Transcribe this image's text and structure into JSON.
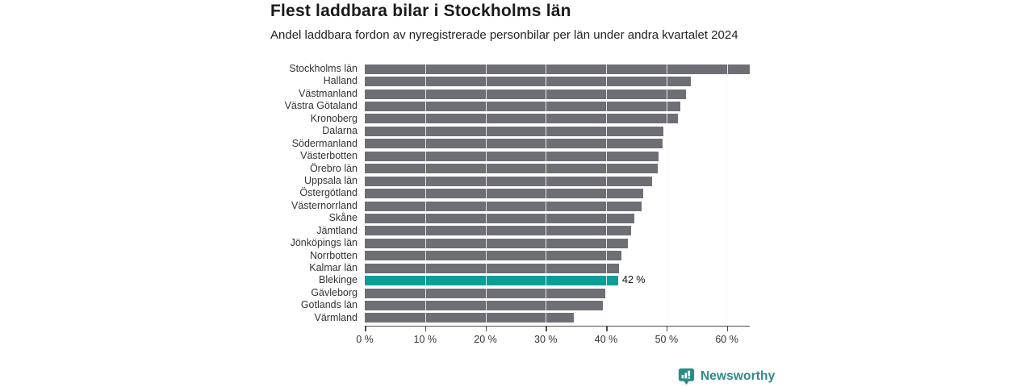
{
  "header": {
    "title": "Flest laddbara bilar i Stockholms län",
    "subtitle": "Andel laddbara fordon av nyregistrerade personbilar per län under andra kvartalet 2024"
  },
  "chart_data": {
    "type": "bar",
    "orientation": "horizontal",
    "title": "Flest laddbara bilar i Stockholms län",
    "subtitle": "Andel laddbara fordon av nyregistrerade personbilar per län under andra kvartalet 2024",
    "xlabel": "",
    "ylabel": "",
    "unit": "%",
    "categories": [
      "Stockholms län",
      "Halland",
      "Västmanland",
      "Västra Götaland",
      "Kronoberg",
      "Dalarna",
      "Södermanland",
      "Västerbotten",
      "Örebro län",
      "Uppsala län",
      "Östergötland",
      "Västernorrland",
      "Skåne",
      "Jämtland",
      "Jönköpings län",
      "Norrbotten",
      "Kalmar län",
      "Blekinge",
      "Gävleborg",
      "Gotlands län",
      "Värmland"
    ],
    "values": [
      63.8,
      54.0,
      53.2,
      52.3,
      51.9,
      49.5,
      49.3,
      48.7,
      48.5,
      47.6,
      46.1,
      45.9,
      44.7,
      44.2,
      43.6,
      42.5,
      42.1,
      42.0,
      39.8,
      39.4,
      34.7
    ],
    "highlight": {
      "category": "Blekinge",
      "index": 17,
      "value_label": "42 %"
    },
    "axis": {
      "min": 0,
      "max": 63.8,
      "ticks": [
        0,
        10,
        20,
        30,
        40,
        50,
        60
      ],
      "tick_labels": [
        "0 %",
        "10 %",
        "20 %",
        "30 %",
        "40 %",
        "50 %",
        "60 %"
      ],
      "grid": true
    },
    "colors": {
      "bar": "#6e6e75",
      "highlight": "#0a9e96"
    }
  },
  "footer": {
    "brand": "Newsworthy",
    "brand_color": "#2b8a87",
    "icon": "bar-chart-bubble-icon"
  }
}
